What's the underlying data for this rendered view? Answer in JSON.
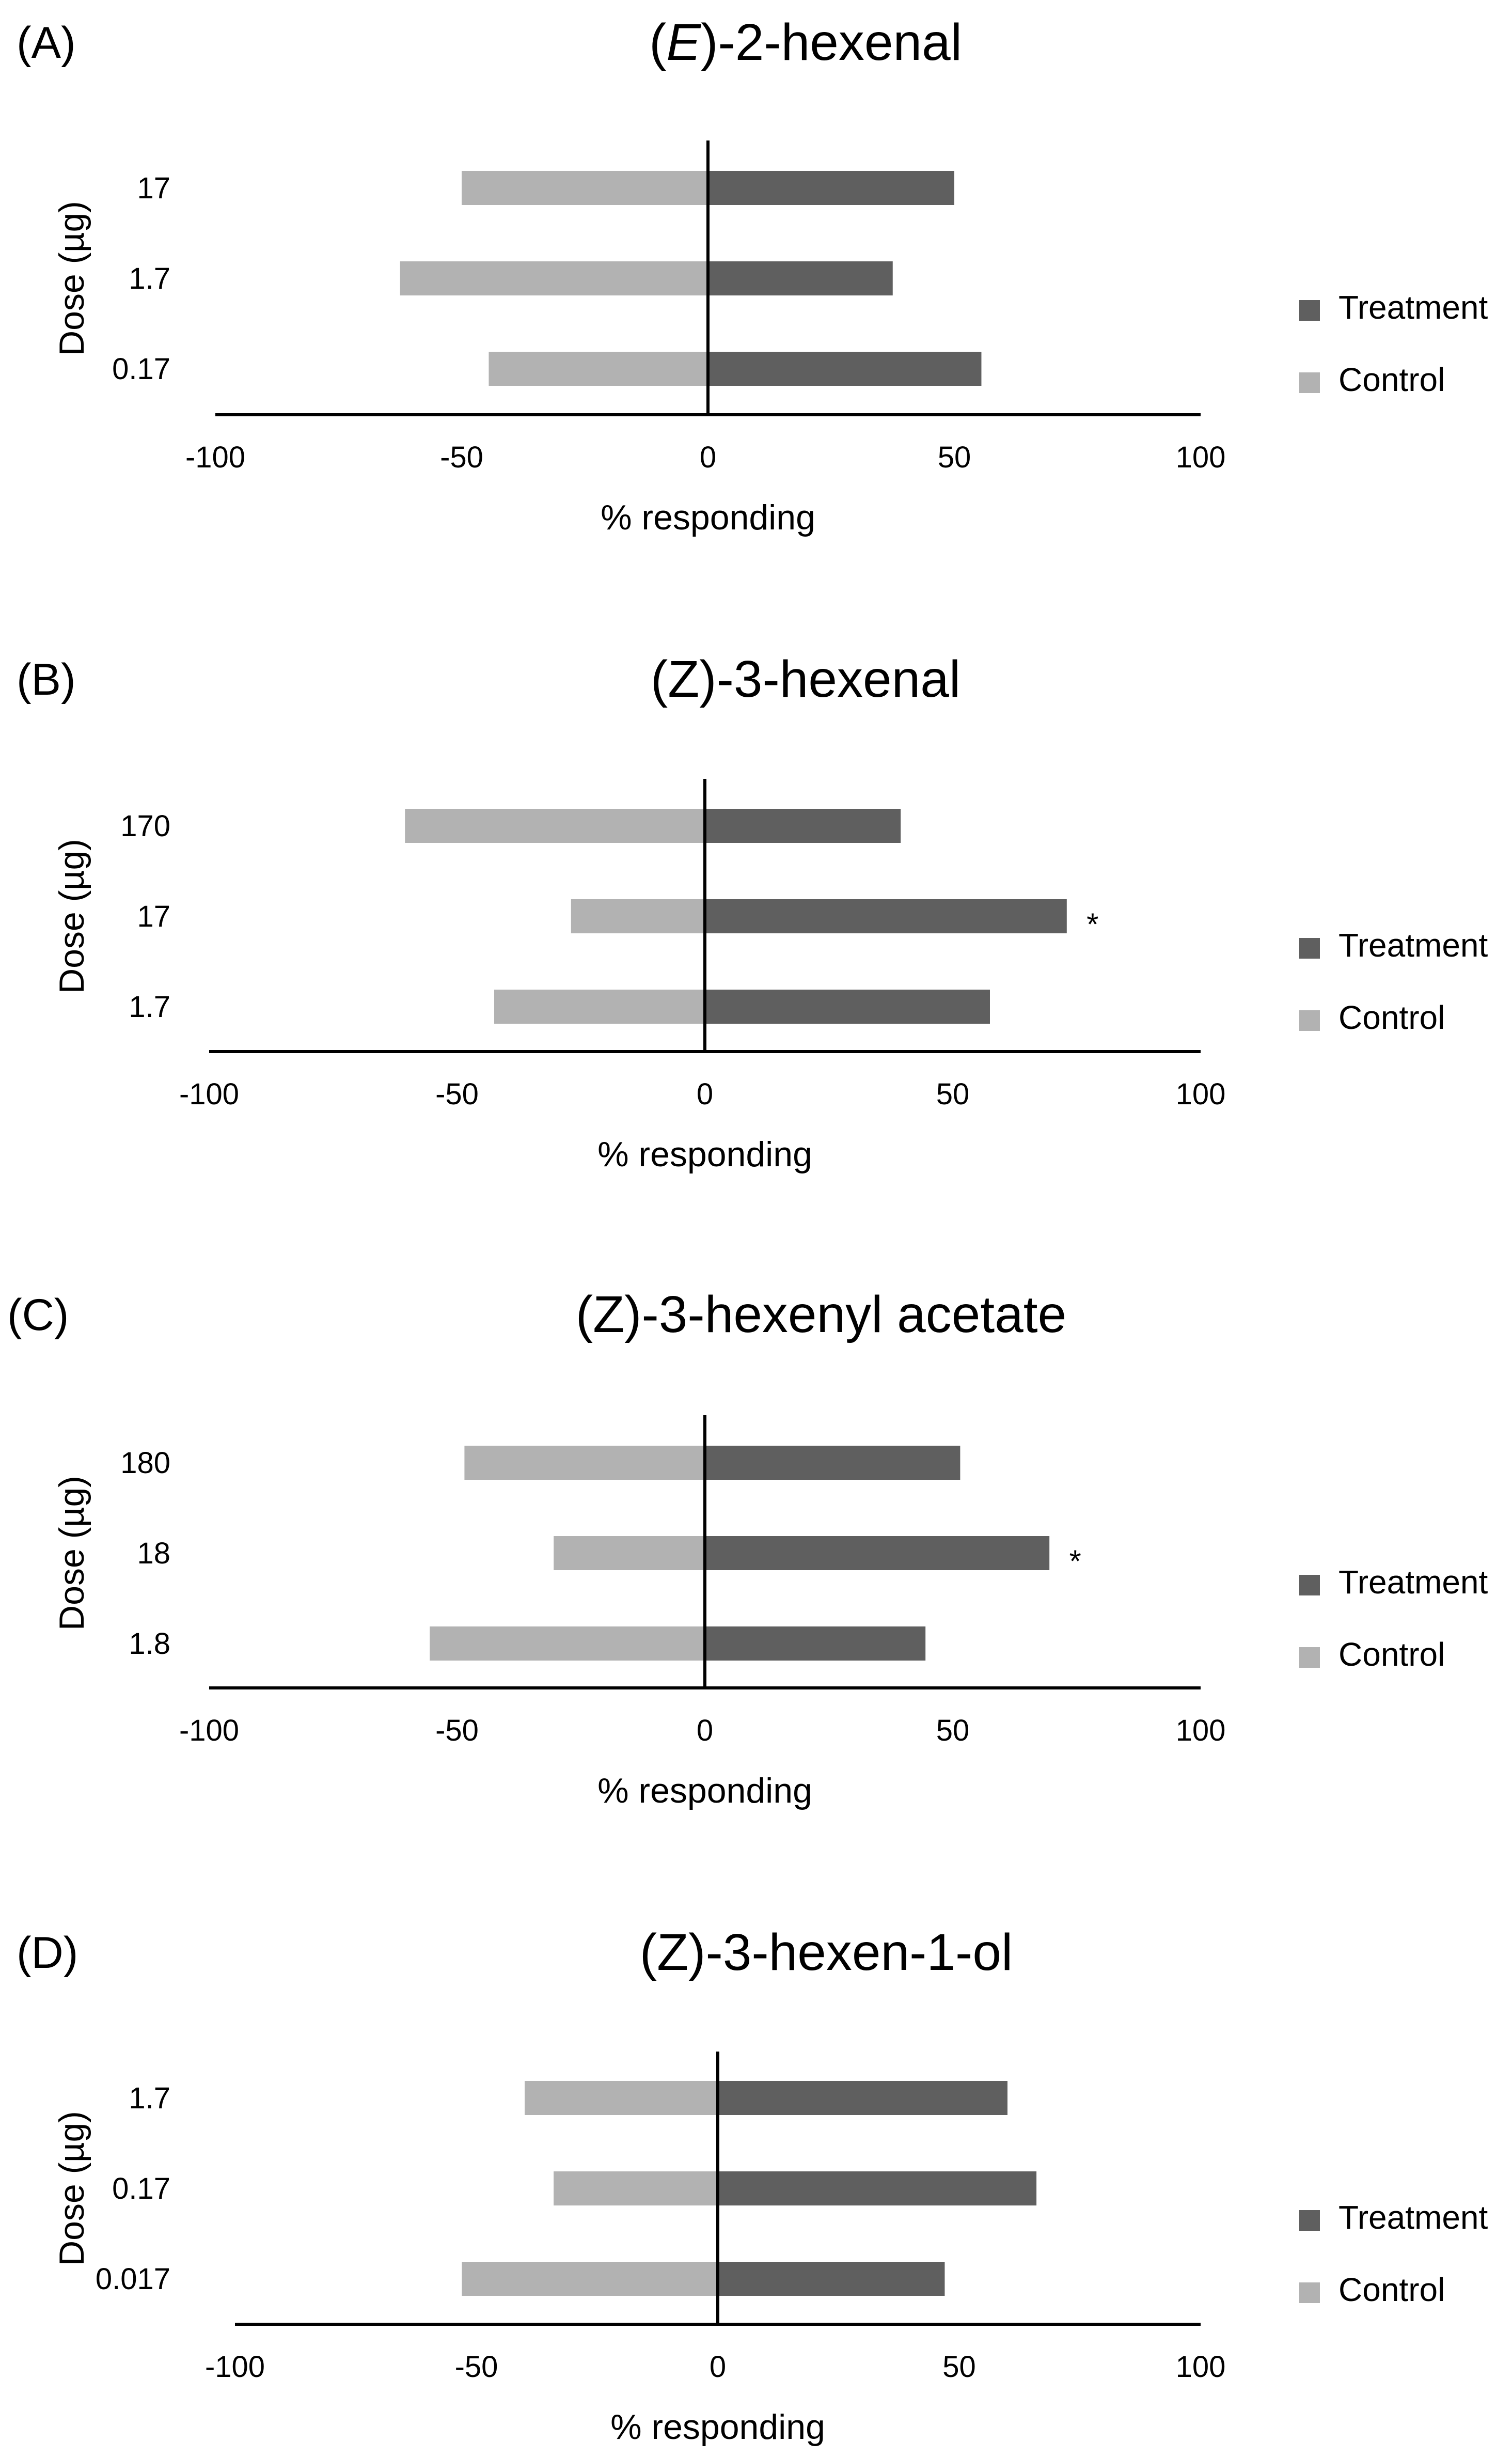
{
  "figure": {
    "colors": {
      "treatment": "#5f5f5f",
      "control": "#b2b2b2",
      "axis": "#000000",
      "text": "#000000"
    }
  },
  "chart_data": [
    {
      "type": "bar",
      "orientation": "horizontal-diverging",
      "panel_label": "(A)",
      "title_italic": "E",
      "title_prefix": "(",
      "title_suffix": ")-2-hexenal",
      "title": "(E)-2-hexenal",
      "ylabel": "Dose (µg)",
      "xlabel": "% responding",
      "xlim": [
        -100,
        100
      ],
      "xticks": [
        "-100",
        "-50",
        "0",
        "50",
        "100"
      ],
      "categories": [
        "17",
        "1.7",
        "0.17"
      ],
      "series": [
        {
          "name": "Treatment",
          "values": [
            50,
            37.5,
            55.5
          ]
        },
        {
          "name": "Control",
          "values": [
            -50,
            -62.5,
            -44.5
          ]
        }
      ],
      "significant": [
        false,
        false,
        false
      ],
      "annotation": "*",
      "legend": [
        "Treatment",
        "Control"
      ],
      "legend_position": "right"
    },
    {
      "type": "bar",
      "orientation": "horizontal-diverging",
      "panel_label": "(B)",
      "title_italic": "",
      "title_prefix": "",
      "title_suffix": "(Z)-3-hexenal",
      "title": "(Z)-3-hexenal",
      "ylabel": "Dose (µg)",
      "xlabel": "% responding",
      "xlim": [
        -100,
        100
      ],
      "xticks": [
        "-100",
        "-50",
        "0",
        "50",
        "100"
      ],
      "categories": [
        "170",
        "17",
        "1.7"
      ],
      "series": [
        {
          "name": "Treatment",
          "values": [
            39.5,
            73,
            57.5
          ]
        },
        {
          "name": "Control",
          "values": [
            -60.5,
            -27,
            -42.5
          ]
        }
      ],
      "significant": [
        false,
        true,
        false
      ],
      "annotation": "*",
      "legend": [
        "Treatment",
        "Control"
      ],
      "legend_position": "right"
    },
    {
      "type": "bar",
      "orientation": "horizontal-diverging",
      "panel_label": "(C)",
      "title_italic": "",
      "title_prefix": "",
      "title_suffix": "(Z)-3-hexenyl acetate",
      "title": "(Z)-3-hexenyl acetate",
      "ylabel": "Dose (µg)",
      "xlabel": "% responding",
      "xlim": [
        -100,
        100
      ],
      "xticks": [
        "-100",
        "-50",
        "0",
        "50",
        "100"
      ],
      "categories": [
        "180",
        "18",
        "1.8"
      ],
      "series": [
        {
          "name": "Treatment",
          "values": [
            51.5,
            69.5,
            44.5
          ]
        },
        {
          "name": "Control",
          "values": [
            -48.5,
            -30.5,
            -55.5
          ]
        }
      ],
      "significant": [
        false,
        true,
        false
      ],
      "annotation": "*",
      "legend": [
        "Treatment",
        "Control"
      ],
      "legend_position": "right"
    },
    {
      "type": "bar",
      "orientation": "horizontal-diverging",
      "panel_label": "(D)",
      "title_italic": "",
      "title_prefix": "",
      "title_suffix": "(Z)-3-hexen-1-ol",
      "title": "(Z)-3-hexen-1-ol",
      "ylabel": "Dose (µg)",
      "xlabel": "% responding",
      "xlim": [
        -100,
        100
      ],
      "xticks": [
        "-100",
        "-50",
        "0",
        "50",
        "100"
      ],
      "categories": [
        "1.7",
        "0.17",
        "0.017"
      ],
      "series": [
        {
          "name": "Treatment",
          "values": [
            60,
            66,
            47
          ]
        },
        {
          "name": "Control",
          "values": [
            -40,
            -34,
            -53
          ]
        }
      ],
      "significant": [
        false,
        false,
        false
      ],
      "annotation": "*",
      "legend": [
        "Treatment",
        "Control"
      ],
      "legend_position": "right"
    }
  ]
}
